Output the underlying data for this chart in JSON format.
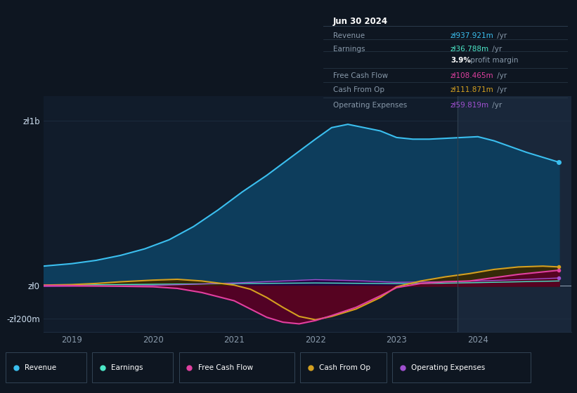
{
  "bg_color": "#0e1621",
  "plot_bg_color": "#111c2b",
  "highlight_bg": "#19273a",
  "grid_color": "#1e2d40",
  "x_label_color": "#8899aa",
  "y_label_color": "#ccddee",
  "ylim": [
    -280000000,
    1150000000
  ],
  "xlim": [
    2018.65,
    2025.15
  ],
  "yticks": [
    -200000000,
    0,
    1000000000
  ],
  "ytick_labels": [
    "-zł200m",
    "zł0",
    "zł1b"
  ],
  "xticks": [
    2019,
    2020,
    2021,
    2022,
    2023,
    2024
  ],
  "legend_items": [
    {
      "label": "Revenue",
      "color": "#3bbfef"
    },
    {
      "label": "Earnings",
      "color": "#4ce8c8"
    },
    {
      "label": "Free Cash Flow",
      "color": "#e040a0"
    },
    {
      "label": "Cash From Op",
      "color": "#d4a020"
    },
    {
      "label": "Operating Expenses",
      "color": "#a050d0"
    }
  ],
  "tooltip": {
    "title": "Jun 30 2024",
    "rows": [
      {
        "label": "Revenue",
        "value": "zł937.921m",
        "unit": " /yr",
        "value_color": "#3bbfef"
      },
      {
        "label": "Earnings",
        "value": "zł36.788m",
        "unit": " /yr",
        "value_color": "#4ce8c8"
      },
      {
        "label": "",
        "value": "3.9%",
        "unit": " profit margin",
        "value_color": "#ffffff",
        "bold_value": true
      },
      {
        "label": "Free Cash Flow",
        "value": "zł108.465m",
        "unit": " /yr",
        "value_color": "#e040a0"
      },
      {
        "label": "Cash From Op",
        "value": "zł111.871m",
        "unit": " /yr",
        "value_color": "#d4a020"
      },
      {
        "label": "Operating Expenses",
        "value": "zł59.819m",
        "unit": " /yr",
        "value_color": "#a050d0"
      }
    ]
  },
  "revenue_x": [
    2018.65,
    2019.0,
    2019.3,
    2019.6,
    2019.9,
    2020.2,
    2020.5,
    2020.8,
    2021.1,
    2021.4,
    2021.7,
    2022.0,
    2022.2,
    2022.4,
    2022.6,
    2022.8,
    2023.0,
    2023.2,
    2023.4,
    2023.6,
    2023.8,
    2024.0,
    2024.2,
    2024.4,
    2024.6,
    2024.8,
    2025.0
  ],
  "revenue_y": [
    120000000,
    135000000,
    155000000,
    185000000,
    225000000,
    280000000,
    360000000,
    460000000,
    570000000,
    670000000,
    780000000,
    890000000,
    960000000,
    980000000,
    960000000,
    940000000,
    900000000,
    890000000,
    890000000,
    895000000,
    900000000,
    905000000,
    880000000,
    845000000,
    810000000,
    780000000,
    750000000
  ],
  "revenue_color": "#3bbfef",
  "revenue_fill": "#0d3d5c",
  "earnings_x": [
    2018.65,
    2019.0,
    2019.5,
    2020.0,
    2020.5,
    2021.0,
    2021.5,
    2022.0,
    2022.5,
    2023.0,
    2023.5,
    2024.0,
    2024.5,
    2025.0
  ],
  "earnings_y": [
    3000000,
    5000000,
    8000000,
    10000000,
    12000000,
    14000000,
    16000000,
    18000000,
    16000000,
    14000000,
    16000000,
    20000000,
    25000000,
    30000000
  ],
  "earnings_color": "#4ce8c8",
  "earnings_fill": "#003322",
  "fcf_x": [
    2018.65,
    2019.0,
    2019.3,
    2019.6,
    2020.0,
    2020.3,
    2020.6,
    2021.0,
    2021.2,
    2021.4,
    2021.6,
    2021.8,
    2022.0,
    2022.2,
    2022.5,
    2022.8,
    2023.0,
    2023.3,
    2023.6,
    2023.9,
    2024.2,
    2024.5,
    2024.8,
    2025.0
  ],
  "fcf_y": [
    3000000,
    2000000,
    0,
    -2000000,
    -5000000,
    -15000000,
    -40000000,
    -90000000,
    -140000000,
    -190000000,
    -220000000,
    -230000000,
    -210000000,
    -180000000,
    -130000000,
    -60000000,
    -10000000,
    15000000,
    25000000,
    30000000,
    50000000,
    70000000,
    85000000,
    95000000
  ],
  "fcf_color": "#e040a0",
  "fcf_fill": "#5a0025",
  "cop_x": [
    2018.65,
    2019.0,
    2019.3,
    2019.6,
    2020.0,
    2020.3,
    2020.6,
    2021.0,
    2021.2,
    2021.4,
    2021.6,
    2021.8,
    2022.0,
    2022.2,
    2022.5,
    2022.8,
    2023.0,
    2023.3,
    2023.6,
    2023.9,
    2024.2,
    2024.5,
    2024.8,
    2025.0
  ],
  "cop_y": [
    5000000,
    8000000,
    15000000,
    25000000,
    35000000,
    40000000,
    30000000,
    5000000,
    -20000000,
    -70000000,
    -130000000,
    -185000000,
    -205000000,
    -185000000,
    -140000000,
    -70000000,
    -5000000,
    30000000,
    55000000,
    75000000,
    100000000,
    115000000,
    120000000,
    115000000
  ],
  "cop_color": "#d4a020",
  "cop_fill": "#3a2800",
  "opex_x": [
    2018.65,
    2019.0,
    2019.5,
    2020.0,
    2020.5,
    2021.0,
    2021.5,
    2022.0,
    2022.5,
    2023.0,
    2023.5,
    2024.0,
    2024.5,
    2025.0
  ],
  "opex_y": [
    -3000000,
    -2000000,
    0,
    3000000,
    10000000,
    18000000,
    28000000,
    38000000,
    32000000,
    22000000,
    25000000,
    30000000,
    38000000,
    48000000
  ],
  "opex_color": "#a050d0",
  "opex_fill": "#2a0048",
  "highlight_region": [
    2023.75,
    2025.15
  ]
}
